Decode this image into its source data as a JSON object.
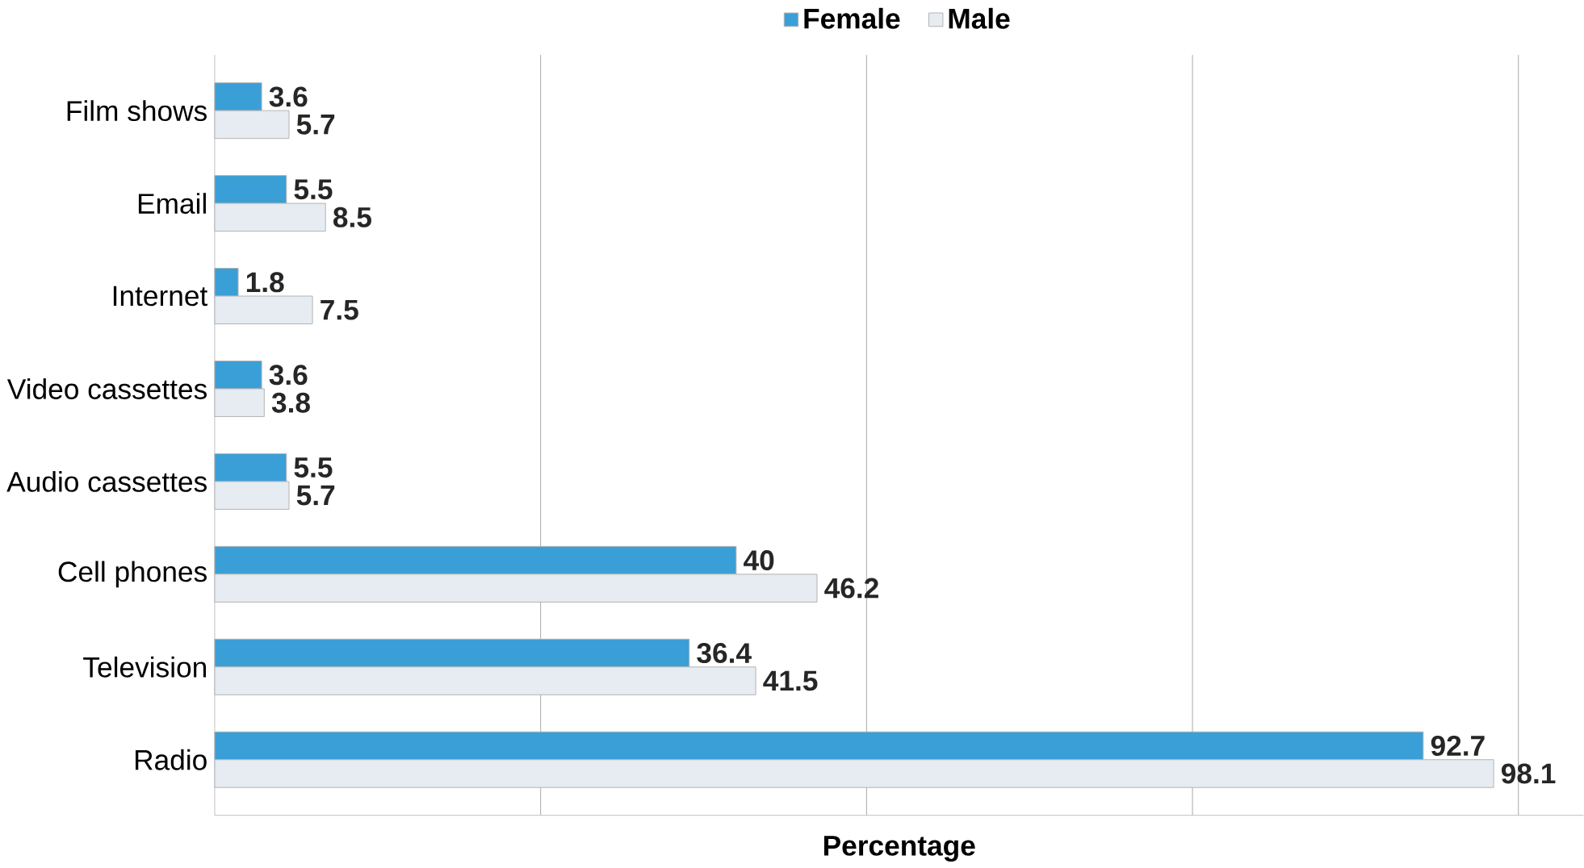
{
  "chart_data": {
    "type": "bar",
    "orientation": "horizontal",
    "categories": [
      "Film shows",
      "Email",
      "Internet",
      "Video cassettes",
      "Audio cassettes",
      "Cell phones",
      "Television",
      "Radio"
    ],
    "series": [
      {
        "name": "Female",
        "color": "#3a9fd6",
        "values": [
          3.6,
          5.5,
          1.8,
          3.6,
          5.5,
          40,
          36.4,
          92.7
        ]
      },
      {
        "name": "Male",
        "color": "#e6ecf2",
        "values": [
          5.7,
          8.5,
          7.5,
          3.8,
          5.7,
          46.2,
          41.5,
          98.1
        ]
      }
    ],
    "xlabel": "Percentage",
    "xlim": [
      0,
      105
    ],
    "xticks": [
      {
        "value": 25,
        "label": null
      },
      {
        "value": 50,
        "label": null
      },
      {
        "value": 75,
        "label": null
      },
      {
        "value": 100,
        "label": null
      }
    ],
    "grid": "x",
    "legend": "top",
    "data_labels": true
  }
}
